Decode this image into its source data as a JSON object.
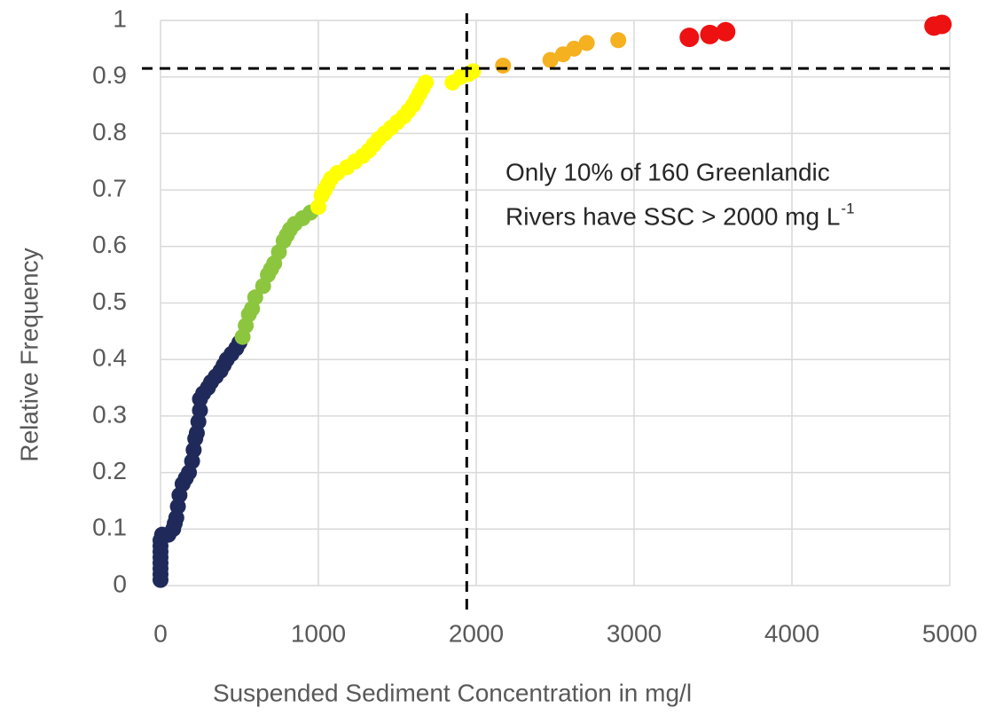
{
  "chart_data": {
    "type": "scatter",
    "xlabel": "Suspended Sediment Concentration in mg/l",
    "ylabel": "Relative Frequency",
    "xlim": [
      0,
      5000
    ],
    "ylim": [
      0,
      1
    ],
    "xticks": [
      0,
      1000,
      2000,
      3000,
      4000,
      5000
    ],
    "yticks": [
      0,
      0.1,
      0.2,
      0.3,
      0.4,
      0.5,
      0.6,
      0.7,
      0.8,
      0.9,
      1
    ],
    "grid": true,
    "vline": 1940,
    "hline": 0.915,
    "annotation": {
      "lines": [
        "Only 10% of 160 Greenlandic",
        "Rivers have SSC > 2000 mg L"
      ],
      "superscript": "-1"
    },
    "series": [
      {
        "color": "#1f2a5a",
        "x": [
          0,
          0,
          0,
          0,
          0,
          0,
          0,
          0,
          10,
          50,
          80,
          90,
          100,
          110,
          120,
          140,
          160,
          180,
          200,
          210,
          220,
          230,
          240,
          250,
          250,
          270,
          300,
          320,
          350,
          380,
          400,
          420,
          450,
          480,
          500
        ],
        "values": [
          0.01,
          0.02,
          0.03,
          0.04,
          0.05,
          0.06,
          0.07,
          0.08,
          0.09,
          0.09,
          0.1,
          0.11,
          0.12,
          0.14,
          0.16,
          0.18,
          0.19,
          0.2,
          0.22,
          0.24,
          0.26,
          0.27,
          0.29,
          0.31,
          0.33,
          0.34,
          0.35,
          0.36,
          0.37,
          0.38,
          0.39,
          0.4,
          0.41,
          0.42,
          0.43
        ]
      },
      {
        "color": "#8cc63f",
        "x": [
          520,
          540,
          560,
          580,
          600,
          650,
          680,
          700,
          720,
          750,
          780,
          800,
          820,
          850,
          900,
          950
        ],
        "values": [
          0.44,
          0.46,
          0.48,
          0.49,
          0.51,
          0.53,
          0.55,
          0.56,
          0.57,
          0.59,
          0.61,
          0.62,
          0.63,
          0.64,
          0.65,
          0.66
        ]
      },
      {
        "color": "#ffff00",
        "x": [
          1000,
          1020,
          1040,
          1060,
          1080,
          1120,
          1180,
          1230,
          1280,
          1320,
          1350,
          1380,
          1420,
          1460,
          1500,
          1540,
          1570,
          1600,
          1620,
          1640,
          1660,
          1680,
          1850,
          1900,
          1950,
          1980
        ],
        "values": [
          0.67,
          0.69,
          0.7,
          0.71,
          0.72,
          0.73,
          0.74,
          0.75,
          0.76,
          0.77,
          0.78,
          0.79,
          0.8,
          0.81,
          0.82,
          0.83,
          0.84,
          0.85,
          0.86,
          0.87,
          0.88,
          0.89,
          0.89,
          0.9,
          0.905,
          0.91
        ]
      },
      {
        "color": "#f5b120",
        "x": [
          2170,
          2470,
          2550,
          2620,
          2700,
          2900
        ],
        "values": [
          0.92,
          0.93,
          0.94,
          0.95,
          0.96,
          0.965
        ]
      },
      {
        "color": "#ee1111",
        "x": [
          3350,
          3480,
          3580,
          4900,
          4950
        ],
        "values": [
          0.97,
          0.975,
          0.98,
          0.99,
          0.993
        ]
      }
    ]
  }
}
